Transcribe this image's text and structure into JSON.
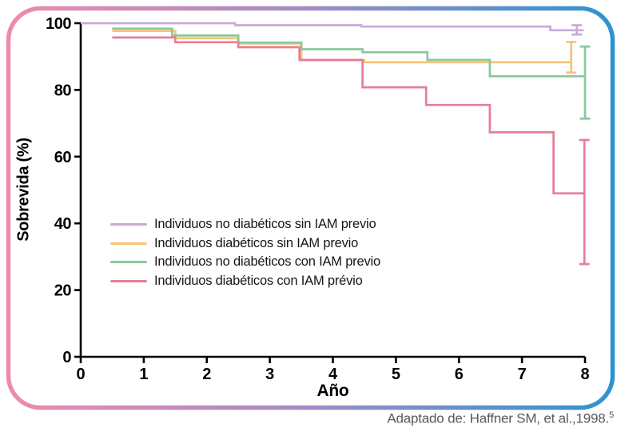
{
  "frame": {
    "background": "#ffffff",
    "border_gradient": [
      "#ee8bad",
      "#a08dc3",
      "#2e93d0"
    ],
    "border_radius": 40,
    "border_width": 5.5
  },
  "caption": {
    "text": "Adaptado de: Haffner SM, et al.,1998.",
    "superscript": "5"
  },
  "chart_data": {
    "type": "line",
    "subtype": "step-survival",
    "title": "",
    "xlabel": "Año",
    "ylabel": "Sobrevida (%)",
    "xlim": [
      0,
      8
    ],
    "ylim": [
      0,
      100
    ],
    "xticks": [
      0,
      1,
      2,
      3,
      4,
      5,
      6,
      7,
      8
    ],
    "yticks": [
      0,
      20,
      40,
      60,
      80,
      100
    ],
    "grid": false,
    "axis_color": "#000000",
    "legend_position": "inside-middle-left",
    "series": [
      {
        "name": "Individuos no diabéticos sin IAM previo",
        "color": "#c7abd8",
        "steps": [
          [
            0,
            100
          ],
          [
            2.45,
            99.4
          ],
          [
            4.45,
            99.0
          ],
          [
            7.45,
            97.9
          ]
        ],
        "line_end": 7.98,
        "error_bar": {
          "x": 7.87,
          "top": 99.4,
          "bottom": 96.6
        }
      },
      {
        "name": "Individuos diabéticos sin IAM previo",
        "color": "#f7c377",
        "steps": [
          [
            0.5,
            97.7
          ],
          [
            1.5,
            95.5
          ],
          [
            2.5,
            93.9
          ],
          [
            3.5,
            88.9
          ],
          [
            4.5,
            88.3
          ]
        ],
        "line_end": 7.78,
        "error_bar": {
          "x": 7.78,
          "top": 94.4,
          "bottom": 85.2
        }
      },
      {
        "name": "Individuos no diabéticos con IAM previo",
        "color": "#8bc89c",
        "steps": [
          [
            0.5,
            98.4
          ],
          [
            1.45,
            96.3
          ],
          [
            2.5,
            94.2
          ],
          [
            3.5,
            92.2
          ],
          [
            4.47,
            91.3
          ],
          [
            5.5,
            89.0
          ],
          [
            6.49,
            84.1
          ]
        ],
        "line_end": 8.0,
        "error_bar": {
          "x": 8.0,
          "top": 93.0,
          "bottom": 71.4
        }
      },
      {
        "name": "Individuos diabéticos con IAM prévio",
        "color": "#e77e97",
        "steps": [
          [
            0.5,
            95.7
          ],
          [
            1.5,
            94.3
          ],
          [
            2.5,
            92.8
          ],
          [
            3.47,
            89.0
          ],
          [
            4.47,
            80.8
          ],
          [
            5.48,
            75.5
          ],
          [
            6.49,
            67.3
          ],
          [
            7.5,
            49.0
          ]
        ],
        "line_end": 7.99,
        "error_bar": {
          "x": 7.99,
          "top": 65.0,
          "bottom": 27.8
        }
      }
    ]
  }
}
